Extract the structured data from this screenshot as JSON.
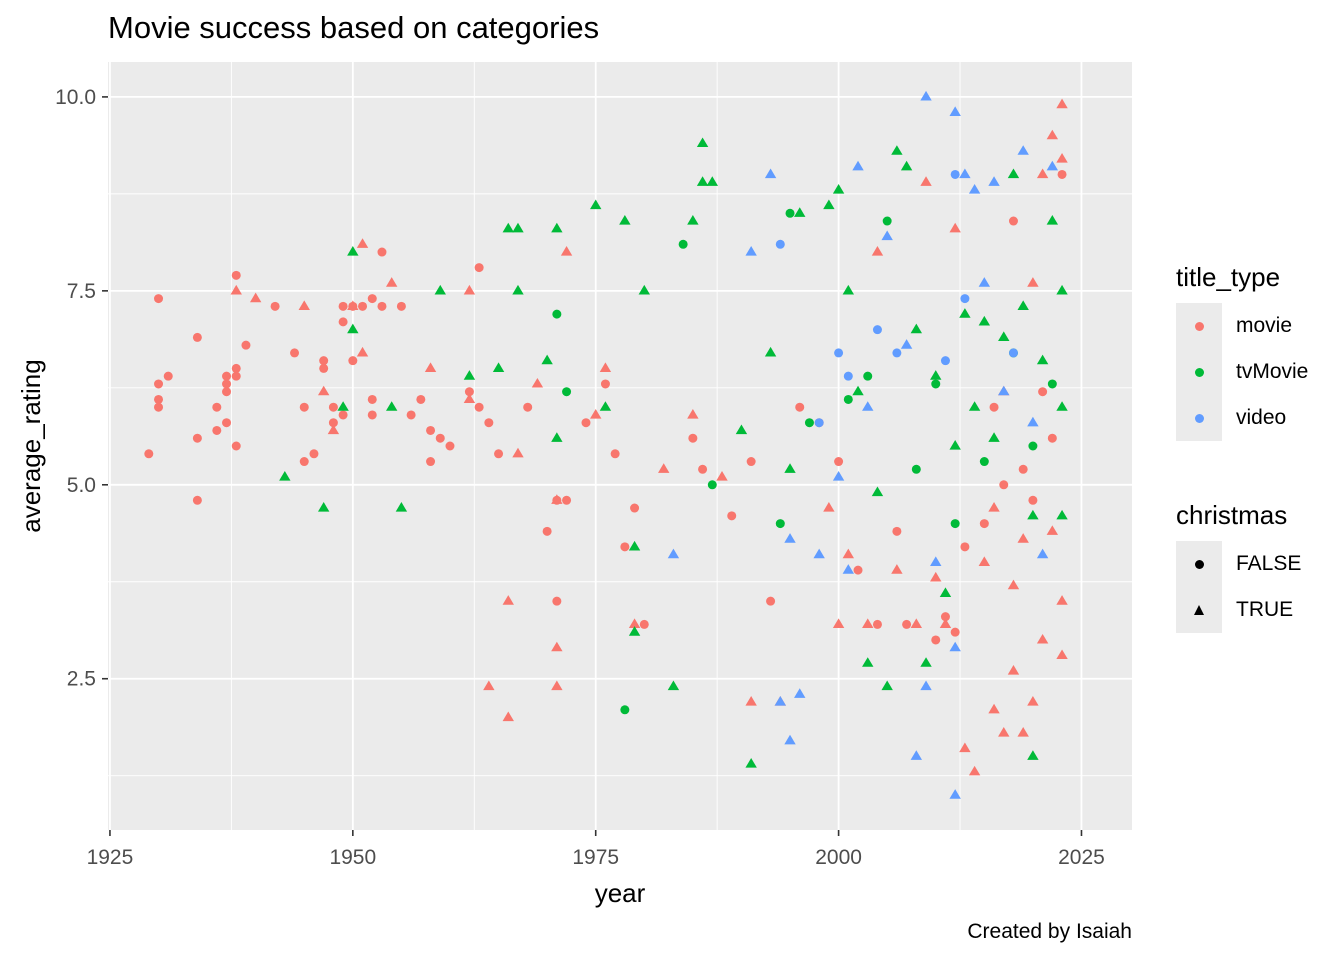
{
  "chart_data": {
    "type": "scatter",
    "title": "Movie success based on categories",
    "xlabel": "year",
    "ylabel": "average_rating",
    "caption": "Created by Isaiah",
    "xlim": [
      1924.8,
      2030.2
    ],
    "ylim": [
      0.55,
      10.45
    ],
    "x_ticks": [
      1925,
      1950,
      1975,
      2000,
      2025
    ],
    "y_ticks": [
      2.5,
      5.0,
      7.5,
      10.0
    ],
    "x_tick_labels": [
      "1925",
      "1950",
      "1975",
      "2000",
      "2025"
    ],
    "y_tick_labels": [
      "2.5",
      "5.0",
      "7.5",
      "10.0"
    ],
    "grid": true,
    "background": "#ebebeb",
    "colors": {
      "movie": "#f8766d",
      "tvMovie": "#00ba38",
      "video": "#619cff"
    },
    "legend": {
      "placement": "right",
      "color_title": "title_type",
      "color_items": [
        "movie",
        "tvMovie",
        "video"
      ],
      "shape_title": "christmas",
      "shape_items": [
        "FALSE",
        "TRUE"
      ]
    },
    "note": "Dense point cloud (~1500 points). Listed points are an approximate representative sample read from the plot; marker shape: circle = christmas FALSE, triangle = christmas TRUE.",
    "series": [
      {
        "name": "movie",
        "christmas": "FALSE",
        "points": [
          [
            1929,
            5.4
          ],
          [
            1930,
            7.4
          ],
          [
            1930,
            6.3
          ],
          [
            1930,
            6.1
          ],
          [
            1930,
            6.0
          ],
          [
            1931,
            6.4
          ],
          [
            1934,
            6.9
          ],
          [
            1934,
            5.6
          ],
          [
            1934,
            4.8
          ],
          [
            1936,
            6.0
          ],
          [
            1936,
            5.7
          ],
          [
            1937,
            6.4
          ],
          [
            1937,
            6.3
          ],
          [
            1937,
            6.2
          ],
          [
            1937,
            5.8
          ],
          [
            1938,
            7.7
          ],
          [
            1938,
            6.5
          ],
          [
            1938,
            6.4
          ],
          [
            1938,
            5.5
          ],
          [
            1939,
            6.8
          ],
          [
            1942,
            7.3
          ],
          [
            1944,
            6.7
          ],
          [
            1945,
            6.0
          ],
          [
            1945,
            5.3
          ],
          [
            1946,
            5.4
          ],
          [
            1947,
            6.6
          ],
          [
            1947,
            6.5
          ],
          [
            1948,
            6.0
          ],
          [
            1948,
            5.8
          ],
          [
            1949,
            7.3
          ],
          [
            1949,
            7.1
          ],
          [
            1949,
            5.9
          ],
          [
            1950,
            7.3
          ],
          [
            1950,
            6.6
          ],
          [
            1951,
            7.3
          ],
          [
            1952,
            7.4
          ],
          [
            1952,
            6.1
          ],
          [
            1952,
            5.9
          ],
          [
            1953,
            8.0
          ],
          [
            1953,
            7.3
          ],
          [
            1955,
            7.3
          ],
          [
            1956,
            5.9
          ],
          [
            1957,
            6.1
          ],
          [
            1958,
            5.3
          ],
          [
            1958,
            5.7
          ],
          [
            1959,
            5.6
          ],
          [
            1960,
            5.5
          ],
          [
            1962,
            6.2
          ],
          [
            1963,
            7.8
          ],
          [
            1963,
            6.0
          ],
          [
            1964,
            5.8
          ],
          [
            1965,
            5.4
          ],
          [
            1968,
            6.0
          ],
          [
            1970,
            4.4
          ],
          [
            1971,
            4.8
          ],
          [
            1971,
            3.5
          ],
          [
            1972,
            4.8
          ],
          [
            1974,
            5.8
          ],
          [
            1976,
            6.3
          ],
          [
            1977,
            5.4
          ],
          [
            1978,
            4.2
          ],
          [
            1979,
            4.7
          ],
          [
            1980,
            3.2
          ],
          [
            1985,
            5.6
          ],
          [
            1986,
            5.2
          ],
          [
            1989,
            4.6
          ],
          [
            1991,
            5.3
          ],
          [
            1993,
            3.5
          ],
          [
            1996,
            6.0
          ],
          [
            1998,
            5.8
          ],
          [
            2000,
            5.3
          ],
          [
            2002,
            3.9
          ],
          [
            2004,
            3.2
          ],
          [
            2006,
            4.4
          ],
          [
            2007,
            3.2
          ],
          [
            2010,
            3.0
          ],
          [
            2011,
            3.3
          ],
          [
            2012,
            3.1
          ],
          [
            2013,
            4.2
          ],
          [
            2015,
            4.5
          ],
          [
            2016,
            6.0
          ],
          [
            2017,
            5.0
          ],
          [
            2018,
            8.4
          ],
          [
            2019,
            5.2
          ],
          [
            2020,
            4.8
          ],
          [
            2021,
            6.2
          ],
          [
            2022,
            5.6
          ],
          [
            2023,
            9.0
          ]
        ]
      },
      {
        "name": "movie",
        "christmas": "TRUE",
        "points": [
          [
            1938,
            7.5
          ],
          [
            1940,
            7.4
          ],
          [
            1945,
            7.3
          ],
          [
            1947,
            6.2
          ],
          [
            1948,
            5.7
          ],
          [
            1950,
            7.3
          ],
          [
            1951,
            8.1
          ],
          [
            1951,
            6.7
          ],
          [
            1954,
            7.6
          ],
          [
            1958,
            6.5
          ],
          [
            1962,
            7.5
          ],
          [
            1962,
            6.1
          ],
          [
            1964,
            2.4
          ],
          [
            1966,
            3.5
          ],
          [
            1966,
            2.0
          ],
          [
            1967,
            5.4
          ],
          [
            1969,
            6.3
          ],
          [
            1971,
            4.8
          ],
          [
            1971,
            2.9
          ],
          [
            1971,
            2.4
          ],
          [
            1972,
            8.0
          ],
          [
            1975,
            5.9
          ],
          [
            1976,
            6.5
          ],
          [
            1979,
            3.2
          ],
          [
            1982,
            5.2
          ],
          [
            1985,
            5.9
          ],
          [
            1988,
            5.1
          ],
          [
            1991,
            2.2
          ],
          [
            1994,
            2.2
          ],
          [
            1999,
            4.7
          ],
          [
            2000,
            3.2
          ],
          [
            2001,
            4.1
          ],
          [
            2003,
            3.2
          ],
          [
            2004,
            8.0
          ],
          [
            2006,
            3.9
          ],
          [
            2008,
            3.2
          ],
          [
            2009,
            8.9
          ],
          [
            2010,
            3.8
          ],
          [
            2011,
            3.2
          ],
          [
            2012,
            8.3
          ],
          [
            2013,
            1.6
          ],
          [
            2014,
            1.3
          ],
          [
            2015,
            4.0
          ],
          [
            2016,
            2.1
          ],
          [
            2017,
            1.8
          ],
          [
            2018,
            2.6
          ],
          [
            2019,
            1.8
          ],
          [
            2020,
            2.2
          ],
          [
            2021,
            9.0
          ],
          [
            2022,
            9.5
          ],
          [
            2023,
            9.9
          ],
          [
            2023,
            9.2
          ],
          [
            2023,
            2.8
          ],
          [
            2023,
            3.5
          ],
          [
            2022,
            4.4
          ],
          [
            2021,
            3.0
          ],
          [
            2020,
            7.6
          ],
          [
            2019,
            4.3
          ],
          [
            2018,
            3.7
          ],
          [
            2017,
            6.2
          ],
          [
            2016,
            4.7
          ]
        ]
      },
      {
        "name": "tvMovie",
        "christmas": "FALSE",
        "points": [
          [
            1971,
            7.2
          ],
          [
            1972,
            6.2
          ],
          [
            1978,
            2.1
          ],
          [
            1984,
            8.1
          ],
          [
            1987,
            5.0
          ],
          [
            1994,
            4.5
          ],
          [
            1995,
            8.5
          ],
          [
            1997,
            5.8
          ],
          [
            2001,
            6.1
          ],
          [
            2003,
            6.4
          ],
          [
            2005,
            8.4
          ],
          [
            2008,
            5.2
          ],
          [
            2010,
            6.3
          ],
          [
            2012,
            4.5
          ],
          [
            2015,
            5.3
          ],
          [
            2018,
            6.7
          ],
          [
            2020,
            5.5
          ],
          [
            2022,
            6.3
          ]
        ]
      },
      {
        "name": "tvMovie",
        "christmas": "TRUE",
        "points": [
          [
            1943,
            5.1
          ],
          [
            1947,
            4.7
          ],
          [
            1949,
            6.0
          ],
          [
            1950,
            8.0
          ],
          [
            1950,
            7.0
          ],
          [
            1954,
            6.0
          ],
          [
            1955,
            4.7
          ],
          [
            1959,
            7.5
          ],
          [
            1962,
            6.4
          ],
          [
            1965,
            6.5
          ],
          [
            1966,
            8.3
          ],
          [
            1967,
            8.3
          ],
          [
            1967,
            7.5
          ],
          [
            1970,
            6.6
          ],
          [
            1971,
            8.3
          ],
          [
            1971,
            5.6
          ],
          [
            1975,
            8.6
          ],
          [
            1976,
            6.0
          ],
          [
            1978,
            8.4
          ],
          [
            1979,
            4.2
          ],
          [
            1979,
            3.1
          ],
          [
            1980,
            7.5
          ],
          [
            1983,
            2.4
          ],
          [
            1985,
            8.4
          ],
          [
            1986,
            9.4
          ],
          [
            1986,
            8.9
          ],
          [
            1987,
            8.9
          ],
          [
            1990,
            5.7
          ],
          [
            1991,
            1.4
          ],
          [
            1993,
            6.7
          ],
          [
            1995,
            5.2
          ],
          [
            1996,
            8.5
          ],
          [
            1999,
            8.6
          ],
          [
            2000,
            8.8
          ],
          [
            2001,
            7.5
          ],
          [
            2002,
            6.2
          ],
          [
            2003,
            2.7
          ],
          [
            2004,
            4.9
          ],
          [
            2005,
            2.4
          ],
          [
            2006,
            9.3
          ],
          [
            2007,
            9.1
          ],
          [
            2008,
            7.0
          ],
          [
            2009,
            2.7
          ],
          [
            2010,
            6.4
          ],
          [
            2011,
            3.6
          ],
          [
            2012,
            5.5
          ],
          [
            2013,
            7.2
          ],
          [
            2014,
            6.0
          ],
          [
            2015,
            7.1
          ],
          [
            2016,
            5.6
          ],
          [
            2017,
            6.9
          ],
          [
            2018,
            9.0
          ],
          [
            2019,
            7.3
          ],
          [
            2020,
            1.5
          ],
          [
            2020,
            4.6
          ],
          [
            2021,
            6.6
          ],
          [
            2022,
            8.4
          ],
          [
            2023,
            7.5
          ],
          [
            2023,
            6.0
          ],
          [
            2023,
            4.6
          ]
        ]
      },
      {
        "name": "video",
        "christmas": "FALSE",
        "points": [
          [
            1994,
            8.1
          ],
          [
            1998,
            5.8
          ],
          [
            2000,
            6.7
          ],
          [
            2001,
            6.4
          ],
          [
            2004,
            7.0
          ],
          [
            2006,
            6.7
          ],
          [
            2011,
            6.6
          ],
          [
            2012,
            9.0
          ],
          [
            2013,
            7.4
          ],
          [
            2018,
            6.7
          ]
        ]
      },
      {
        "name": "video",
        "christmas": "TRUE",
        "points": [
          [
            1983,
            4.1
          ],
          [
            1991,
            8.0
          ],
          [
            1993,
            9.0
          ],
          [
            1994,
            2.2
          ],
          [
            1995,
            4.3
          ],
          [
            1995,
            1.7
          ],
          [
            1996,
            2.3
          ],
          [
            1998,
            4.1
          ],
          [
            2000,
            5.1
          ],
          [
            2001,
            3.9
          ],
          [
            2002,
            9.1
          ],
          [
            2003,
            6.0
          ],
          [
            2005,
            8.2
          ],
          [
            2007,
            6.8
          ],
          [
            2008,
            1.5
          ],
          [
            2009,
            10.0
          ],
          [
            2009,
            2.4
          ],
          [
            2010,
            4.0
          ],
          [
            2012,
            9.8
          ],
          [
            2012,
            2.9
          ],
          [
            2012,
            1.0
          ],
          [
            2013,
            9.0
          ],
          [
            2014,
            8.8
          ],
          [
            2015,
            7.6
          ],
          [
            2016,
            8.9
          ],
          [
            2017,
            6.2
          ],
          [
            2019,
            9.3
          ],
          [
            2020,
            5.8
          ],
          [
            2022,
            9.1
          ],
          [
            2021,
            4.1
          ]
        ]
      }
    ]
  }
}
